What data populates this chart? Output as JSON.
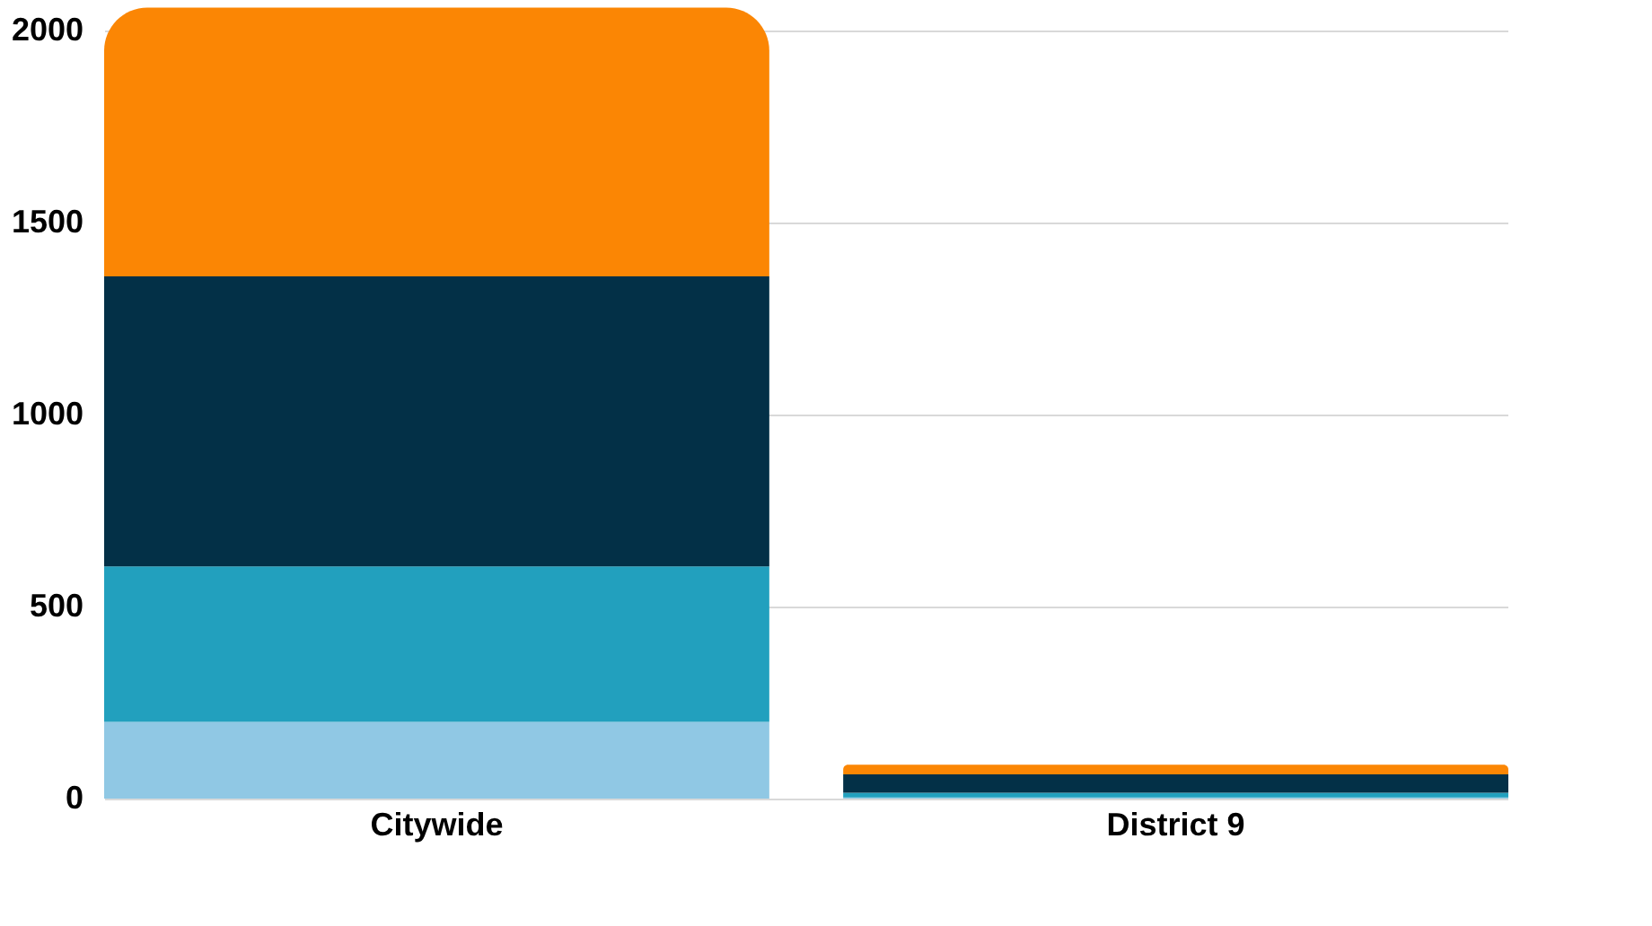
{
  "chart_data": {
    "type": "bar",
    "stacked": true,
    "categories": [
      "Citywide",
      "District 9"
    ],
    "series": [
      {
        "color": "#90c8e4",
        "values": [
          200,
          3
        ]
      },
      {
        "color": "#22a0be",
        "values": [
          405,
          12
        ]
      },
      {
        "color": "#033047",
        "values": [
          755,
          48
        ]
      },
      {
        "color": "#fb8604",
        "values": [
          700,
          25
        ]
      }
    ],
    "ylim": [
      0,
      2080
    ],
    "yticks": [
      0,
      500,
      1000,
      1500,
      2000
    ],
    "grid": "y"
  }
}
